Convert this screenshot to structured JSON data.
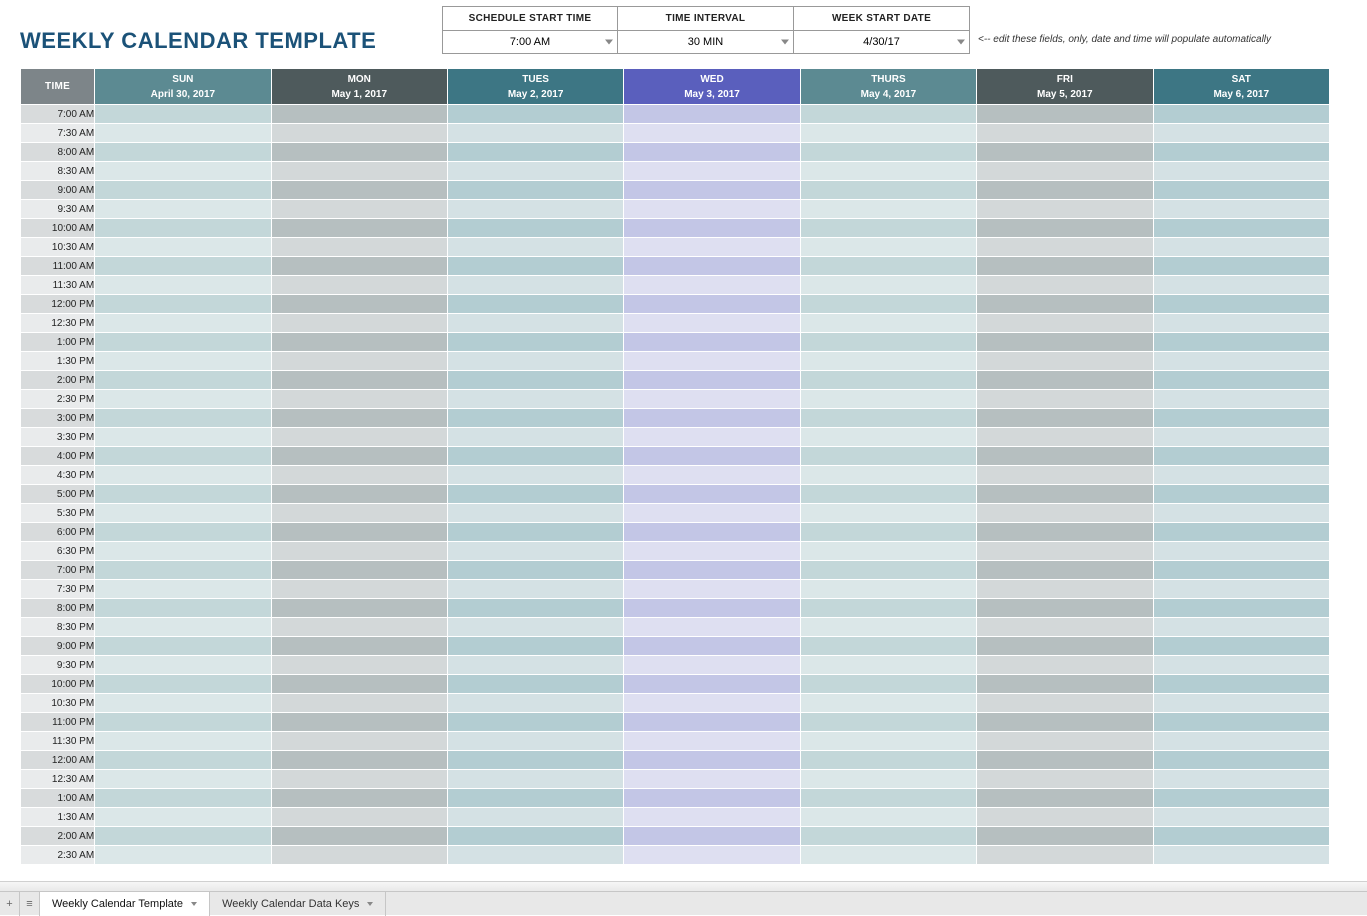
{
  "title": "WEEKLY CALENDAR TEMPLATE",
  "params": [
    {
      "label": "SCHEDULE START TIME",
      "value": "7:00 AM",
      "has_dropdown": true
    },
    {
      "label": "TIME INTERVAL",
      "value": "30 MIN",
      "has_dropdown": true
    },
    {
      "label": "WEEK START DATE",
      "value": "4/30/17",
      "has_dropdown": true
    }
  ],
  "hint": "<-- edit these fields, only, date and time will populate automatically",
  "time_header": "TIME",
  "time_header_bg": "#7d8589",
  "days": [
    {
      "name": "SUN",
      "date": "April 30, 2017",
      "header_bg": "#5c8a92",
      "row_even": "#c3d7d9",
      "row_odd": "#dbe7e8"
    },
    {
      "name": "MON",
      "date": "May 1, 2017",
      "header_bg": "#4e5a5c",
      "row_even": "#b6bfc0",
      "row_odd": "#d3d8d9"
    },
    {
      "name": "TUES",
      "date": "May 2, 2017",
      "header_bg": "#3d7684",
      "row_even": "#b3cdd2",
      "row_odd": "#d4e1e4"
    },
    {
      "name": "WED",
      "date": "May 3, 2017",
      "header_bg": "#5a5fbd",
      "row_even": "#c3c6e6",
      "row_odd": "#dedff1"
    },
    {
      "name": "THURS",
      "date": "May 4, 2017",
      "header_bg": "#5c8a92",
      "row_even": "#c3d7d9",
      "row_odd": "#dbe7e8"
    },
    {
      "name": "FRI",
      "date": "May 5, 2017",
      "header_bg": "#4e5a5c",
      "row_even": "#b6bfc0",
      "row_odd": "#d3d8d9"
    },
    {
      "name": "SAT",
      "date": "May 6, 2017",
      "header_bg": "#3d7684",
      "row_even": "#b3cdd2",
      "row_odd": "#d4e1e4"
    }
  ],
  "time_cell_bg_even": "#d8dbdc",
  "time_cell_bg_odd": "#e9ebec",
  "times": [
    "7:00 AM",
    "7:30 AM",
    "8:00 AM",
    "8:30 AM",
    "9:00 AM",
    "9:30 AM",
    "10:00 AM",
    "10:30 AM",
    "11:00 AM",
    "11:30 AM",
    "12:00 PM",
    "12:30 PM",
    "1:00 PM",
    "1:30 PM",
    "2:00 PM",
    "2:30 PM",
    "3:00 PM",
    "3:30 PM",
    "4:00 PM",
    "4:30 PM",
    "5:00 PM",
    "5:30 PM",
    "6:00 PM",
    "6:30 PM",
    "7:00 PM",
    "7:30 PM",
    "8:00 PM",
    "8:30 PM",
    "9:00 PM",
    "9:30 PM",
    "10:00 PM",
    "10:30 PM",
    "11:00 PM",
    "11:30 PM",
    "12:00 AM",
    "12:30 AM",
    "1:00 AM",
    "1:30 AM",
    "2:00 AM",
    "2:30 AM"
  ],
  "tabs": [
    {
      "label": "Weekly Calendar Template",
      "active": true
    },
    {
      "label": "Weekly Calendar Data Keys",
      "active": false
    }
  ]
}
